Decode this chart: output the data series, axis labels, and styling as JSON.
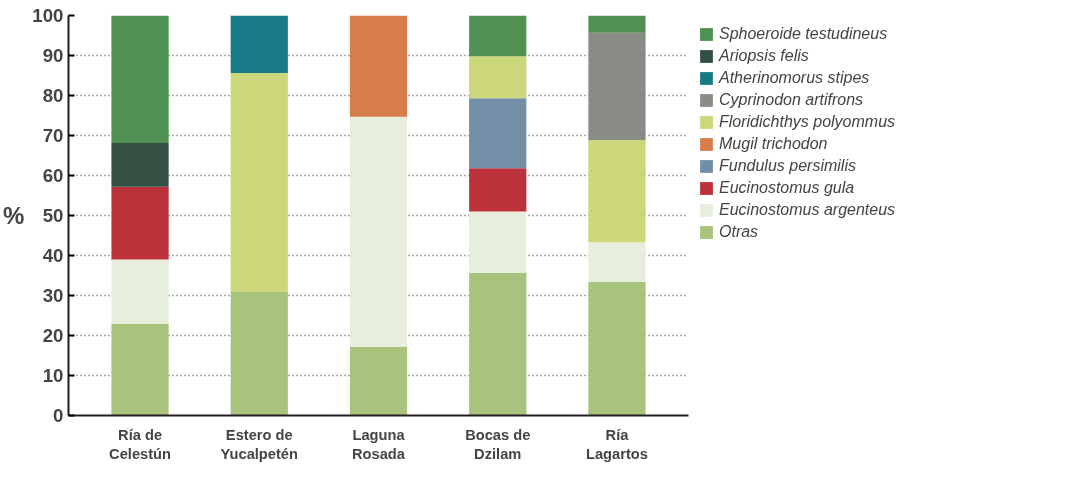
{
  "chart_data": {
    "type": "bar",
    "stacked": true,
    "ylabel": "%",
    "categories": [
      "Ría de\nCelestún",
      "Estero de\nYucalpetén",
      "Laguna\nRosada",
      "Bocas de\nDzilam",
      "Ría\nLagartos"
    ],
    "ylim": [
      0,
      100
    ],
    "yticks": [
      0,
      10,
      20,
      30,
      40,
      50,
      60,
      70,
      80,
      90,
      100
    ],
    "grid": "y",
    "legend": "right",
    "series": [
      {
        "name": "Otras",
        "color": "#a8c37c",
        "values": [
          22.9,
          30.9,
          17.2,
          35.7,
          33.4
        ]
      },
      {
        "name": "Eucinostomus argenteus",
        "color": "#e7efdc",
        "values": [
          16.1,
          null,
          57.5,
          15.3,
          9.9
        ]
      },
      {
        "name": "Eucinostomus gula",
        "color": "#bb323b",
        "values": [
          18.2,
          null,
          null,
          10.8,
          null
        ]
      },
      {
        "name": "Fundulus persimilis",
        "color": "#728fa7",
        "values": [
          null,
          null,
          null,
          17.5,
          null
        ]
      },
      {
        "name": "Mugil trichodon",
        "color": "#d77c4b",
        "values": [
          null,
          null,
          25.3,
          null,
          null
        ]
      },
      {
        "name": "Floridichthys polyommus",
        "color": "#ccd67b",
        "values": [
          null,
          54.7,
          null,
          10.5,
          25.6
        ]
      },
      {
        "name": "Cyprinodon artifrons",
        "color": "#898c84",
        "values": [
          null,
          null,
          null,
          null,
          26.8
        ]
      },
      {
        "name": "Atherinomorus stipes",
        "color": "#167b85",
        "values": [
          null,
          14.4,
          null,
          null,
          null
        ]
      },
      {
        "name": "Ariopsis felis",
        "color": "#345043",
        "values": [
          10.9,
          null,
          null,
          null,
          null
        ]
      },
      {
        "name": "Sphoeroide testudineus",
        "color": "#4f9150",
        "values": [
          31.9,
          null,
          null,
          10.2,
          4.3
        ]
      }
    ]
  }
}
